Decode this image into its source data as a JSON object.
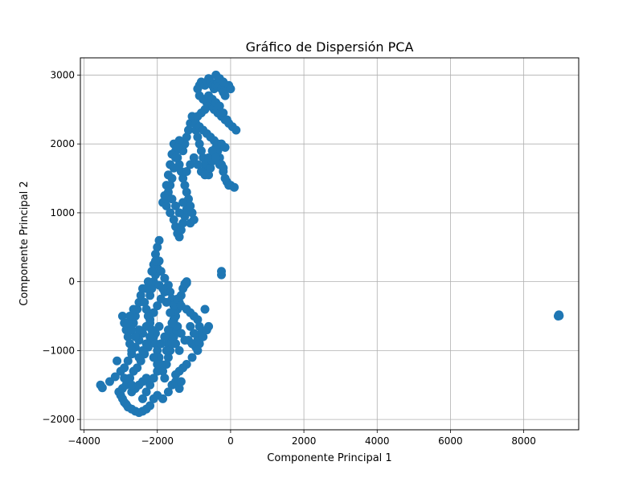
{
  "chart_data": {
    "type": "scatter",
    "title": "Gráfico de Dispersión PCA",
    "xlabel": "Componente Principal 1",
    "ylabel": "Componente Principal 2",
    "xlim": [
      -4100,
      9500
    ],
    "ylim": [
      -2150,
      3250
    ],
    "xticks": [
      -4000,
      -2000,
      0,
      2000,
      4000,
      6000,
      8000
    ],
    "yticks": [
      -2000,
      -1000,
      0,
      1000,
      2000,
      3000
    ],
    "xtick_labels": [
      "−4000",
      "−2000",
      "0",
      "2000",
      "4000",
      "6000",
      "8000"
    ],
    "ytick_labels": [
      "−2000",
      "−1000",
      "0",
      "1000",
      "2000",
      "3000"
    ],
    "grid": true,
    "color": "#1f77b4",
    "series": [
      {
        "points": [
          [
            -3550,
            -1500
          ],
          [
            -3500,
            -1540
          ],
          [
            -3300,
            -1450
          ],
          [
            -3150,
            -1380
          ],
          [
            -3100,
            -1150
          ],
          [
            -3050,
            -1600
          ],
          [
            -3000,
            -1650
          ],
          [
            -2950,
            -1700
          ],
          [
            -2900,
            -1750
          ],
          [
            -2850,
            -1780
          ],
          [
            -2800,
            -1820
          ],
          [
            -2700,
            -1850
          ],
          [
            -2600,
            -1880
          ],
          [
            -2500,
            -1900
          ],
          [
            -2400,
            -1880
          ],
          [
            -2300,
            -1850
          ],
          [
            -2200,
            -1800
          ],
          [
            -2100,
            -1700
          ],
          [
            -2000,
            -1650
          ],
          [
            -1850,
            -1700
          ],
          [
            -1700,
            -1600
          ],
          [
            -1600,
            -1500
          ],
          [
            -1500,
            -1450
          ],
          [
            -1400,
            -1550
          ],
          [
            -1350,
            -1450
          ],
          [
            -2950,
            -1550
          ],
          [
            -2850,
            -1500
          ],
          [
            -2750,
            -1400
          ],
          [
            -2650,
            -1300
          ],
          [
            -2550,
            -1250
          ],
          [
            -2450,
            -1150
          ],
          [
            -2350,
            -1050
          ],
          [
            -2250,
            -950
          ],
          [
            -2150,
            -850
          ],
          [
            -2050,
            -750
          ],
          [
            -1950,
            -650
          ],
          [
            -2900,
            -1250
          ],
          [
            -2800,
            -1150
          ],
          [
            -2700,
            -1050
          ],
          [
            -2600,
            -950
          ],
          [
            -2500,
            -850
          ],
          [
            -2400,
            -750
          ],
          [
            -2300,
            -650
          ],
          [
            -2200,
            -550
          ],
          [
            -2100,
            -450
          ],
          [
            -2000,
            -350
          ],
          [
            -1900,
            -250
          ],
          [
            -1800,
            -150
          ],
          [
            -2950,
            -500
          ],
          [
            -2900,
            -600
          ],
          [
            -2850,
            -700
          ],
          [
            -2800,
            -800
          ],
          [
            -2750,
            -900
          ],
          [
            -2700,
            -1000
          ],
          [
            -2650,
            -600
          ],
          [
            -2600,
            -500
          ],
          [
            -2550,
            -400
          ],
          [
            -2500,
            -300
          ],
          [
            -2450,
            -200
          ],
          [
            -2400,
            -100
          ],
          [
            -2350,
            -300
          ],
          [
            -2300,
            -400
          ],
          [
            -2250,
            -500
          ],
          [
            -2200,
            -600
          ],
          [
            -2150,
            -700
          ],
          [
            -2100,
            -800
          ],
          [
            -2050,
            -900
          ],
          [
            -2000,
            -1000
          ],
          [
            -1950,
            -1100
          ],
          [
            -1900,
            -1200
          ],
          [
            -1850,
            -1300
          ],
          [
            -1800,
            -1400
          ],
          [
            -1750,
            -1000
          ],
          [
            -1700,
            -900
          ],
          [
            -1650,
            -800
          ],
          [
            -1600,
            -700
          ],
          [
            -1550,
            -600
          ],
          [
            -1500,
            -500
          ],
          [
            -1450,
            -400
          ],
          [
            -1400,
            -300
          ],
          [
            -1350,
            -200
          ],
          [
            -1300,
            -100
          ],
          [
            -1250,
            -50
          ],
          [
            -1200,
            -20
          ],
          [
            -1750,
            -1200
          ],
          [
            -1700,
            -1100
          ],
          [
            -1650,
            -1000
          ],
          [
            -1600,
            -900
          ],
          [
            -1550,
            -800
          ],
          [
            -1500,
            -700
          ],
          [
            -2200,
            -200
          ],
          [
            -2150,
            -100
          ],
          [
            -2100,
            0
          ],
          [
            -2050,
            100
          ],
          [
            -2000,
            200
          ],
          [
            -1950,
            300
          ],
          [
            -2000,
            500
          ],
          [
            -1950,
            600
          ],
          [
            -2050,
            400
          ],
          [
            -2100,
            250
          ],
          [
            -1900,
            150
          ],
          [
            -1800,
            50
          ],
          [
            -1700,
            -50
          ],
          [
            -1650,
            -150
          ],
          [
            -1600,
            -250
          ],
          [
            -1550,
            -350
          ],
          [
            -1450,
            -250
          ],
          [
            -1350,
            -350
          ],
          [
            -1200,
            -400
          ],
          [
            -1100,
            -450
          ],
          [
            -1000,
            -500
          ],
          [
            -900,
            -550
          ],
          [
            -850,
            -650
          ],
          [
            -800,
            -750
          ],
          [
            -1100,
            -650
          ],
          [
            -1000,
            -750
          ],
          [
            -900,
            -850
          ],
          [
            -950,
            -950
          ],
          [
            -1050,
            -900
          ],
          [
            -1150,
            -850
          ],
          [
            -700,
            -400
          ],
          [
            -600,
            -650
          ],
          [
            -650,
            -700
          ],
          [
            -750,
            -800
          ],
          [
            -850,
            -900
          ],
          [
            -900,
            -1000
          ],
          [
            -1050,
            -1100
          ],
          [
            -1200,
            -1200
          ],
          [
            -1300,
            -1250
          ],
          [
            -1400,
            -1300
          ],
          [
            -1500,
            -1350
          ],
          [
            -250,
            100
          ],
          [
            -250,
            150
          ],
          [
            -1200,
            0
          ],
          [
            -1250,
            -30
          ],
          [
            -2400,
            -1700
          ],
          [
            -2300,
            -1600
          ],
          [
            -2200,
            -1500
          ],
          [
            -2100,
            -1400
          ],
          [
            -2000,
            -1300
          ],
          [
            -2700,
            -1600
          ],
          [
            -2600,
            -1550
          ],
          [
            -2500,
            -1500
          ],
          [
            -2400,
            -1450
          ],
          [
            -2300,
            -1400
          ],
          [
            -3000,
            -1300
          ],
          [
            -2900,
            -1400
          ],
          [
            -2800,
            -1450
          ],
          [
            -2700,
            -1500
          ],
          [
            -2500,
            -1100
          ],
          [
            -2400,
            -1000
          ],
          [
            -2300,
            -900
          ],
          [
            -2200,
            -800
          ],
          [
            -2100,
            -1100
          ],
          [
            -2000,
            -1200
          ],
          [
            -2500,
            -700
          ],
          [
            -2600,
            -800
          ],
          [
            -2700,
            -700
          ],
          [
            -2800,
            -600
          ],
          [
            -2750,
            -500
          ],
          [
            -2650,
            -400
          ],
          [
            -2300,
            -100
          ],
          [
            -2250,
            0
          ],
          [
            -2150,
            150
          ],
          [
            -2050,
            300
          ],
          [
            -1950,
            -50
          ],
          [
            -1850,
            -100
          ],
          [
            -1750,
            -300
          ],
          [
            -1650,
            -450
          ],
          [
            -1550,
            -550
          ],
          [
            -1450,
            -650
          ],
          [
            -1350,
            -750
          ],
          [
            -1250,
            -850
          ],
          [
            -1900,
            -900
          ],
          [
            -1800,
            -800
          ],
          [
            -1700,
            -700
          ],
          [
            -1600,
            -600
          ],
          [
            -1500,
            -900
          ],
          [
            -1400,
            -1000
          ],
          [
            -1150,
            1200
          ],
          [
            -1200,
            1300
          ],
          [
            -1250,
            1400
          ],
          [
            -1300,
            1500
          ],
          [
            -1350,
            1600
          ],
          [
            -1400,
            1700
          ],
          [
            -1450,
            1800
          ],
          [
            -1500,
            1900
          ],
          [
            -1550,
            2000
          ],
          [
            -1600,
            1850
          ],
          [
            -1650,
            1700
          ],
          [
            -1700,
            1550
          ],
          [
            -1750,
            1400
          ],
          [
            -1800,
            1250
          ],
          [
            -1850,
            1150
          ],
          [
            -1750,
            1100
          ],
          [
            -1650,
            1000
          ],
          [
            -1550,
            900
          ],
          [
            -1500,
            800
          ],
          [
            -1450,
            700
          ],
          [
            -1400,
            650
          ],
          [
            -1350,
            750
          ],
          [
            -1300,
            850
          ],
          [
            -1250,
            950
          ],
          [
            -1200,
            1050
          ],
          [
            -1100,
            850
          ],
          [
            -1000,
            900
          ],
          [
            -1050,
            1000
          ],
          [
            -1100,
            1100
          ],
          [
            -1300,
            1900
          ],
          [
            -1250,
            2000
          ],
          [
            -1200,
            2100
          ],
          [
            -1150,
            2200
          ],
          [
            -1100,
            2300
          ],
          [
            -1050,
            2400
          ],
          [
            -1000,
            2300
          ],
          [
            -950,
            2200
          ],
          [
            -900,
            2100
          ],
          [
            -850,
            2000
          ],
          [
            -800,
            1900
          ],
          [
            -750,
            1800
          ],
          [
            -700,
            1700
          ],
          [
            -650,
            1600
          ],
          [
            -600,
            1550
          ],
          [
            -550,
            1650
          ],
          [
            -500,
            1750
          ],
          [
            -450,
            1850
          ],
          [
            -400,
            1950
          ],
          [
            -350,
            1900
          ],
          [
            -300,
            1800
          ],
          [
            -250,
            1700
          ],
          [
            -200,
            1600
          ],
          [
            -150,
            1500
          ],
          [
            -100,
            1450
          ],
          [
            -50,
            1400
          ],
          [
            0,
            1400
          ],
          [
            100,
            1370
          ],
          [
            150,
            2200
          ],
          [
            50,
            2250
          ],
          [
            -50,
            2300
          ],
          [
            -150,
            2350
          ],
          [
            -250,
            2400
          ],
          [
            -350,
            2450
          ],
          [
            -450,
            2500
          ],
          [
            -550,
            2550
          ],
          [
            -650,
            2600
          ],
          [
            -750,
            2650
          ],
          [
            -850,
            2700
          ],
          [
            -900,
            2800
          ],
          [
            -850,
            2850
          ],
          [
            -800,
            2900
          ],
          [
            -750,
            2880
          ],
          [
            -700,
            2850
          ],
          [
            -650,
            2900
          ],
          [
            -600,
            2950
          ],
          [
            -550,
            2900
          ],
          [
            -500,
            2850
          ],
          [
            -450,
            2800
          ],
          [
            -400,
            2850
          ],
          [
            -350,
            2900
          ],
          [
            -300,
            2850
          ],
          [
            -250,
            2800
          ],
          [
            -200,
            2750
          ],
          [
            -150,
            2700
          ],
          [
            -100,
            2800
          ],
          [
            -50,
            2850
          ],
          [
            0,
            2800
          ],
          [
            -400,
            3000
          ],
          [
            -300,
            2950
          ],
          [
            -200,
            2900
          ],
          [
            -600,
            2700
          ],
          [
            -500,
            2650
          ],
          [
            -400,
            2600
          ],
          [
            -300,
            2550
          ],
          [
            -200,
            2450
          ],
          [
            -100,
            2350
          ],
          [
            -700,
            2500
          ],
          [
            -800,
            2450
          ],
          [
            -900,
            2400
          ],
          [
            -950,
            2300
          ],
          [
            -850,
            2250
          ],
          [
            -750,
            2200
          ],
          [
            -650,
            2150
          ],
          [
            -550,
            2100
          ],
          [
            -450,
            2050
          ],
          [
            -350,
            2000
          ],
          [
            -250,
            2000
          ],
          [
            -150,
            1950
          ],
          [
            -1400,
            2050
          ],
          [
            -1450,
            1950
          ],
          [
            -1500,
            1800
          ],
          [
            -1550,
            1650
          ],
          [
            -1600,
            1500
          ],
          [
            -1650,
            1400
          ],
          [
            -1700,
            1300
          ],
          [
            -1750,
            1200
          ],
          [
            -1600,
            1200
          ],
          [
            -1500,
            1100
          ],
          [
            -1400,
            1000
          ],
          [
            -1300,
            1150
          ],
          [
            -1200,
            1600
          ],
          [
            -1100,
            1700
          ],
          [
            -1000,
            1800
          ],
          [
            -900,
            1700
          ],
          [
            -800,
            1600
          ],
          [
            -700,
            1550
          ],
          [
            -600,
            1800
          ],
          [
            -500,
            1900
          ],
          [
            -400,
            1800
          ],
          [
            -300,
            1700
          ],
          [
            -200,
            1650
          ],
          [
            8950,
            -490
          ],
          [
            8960,
            -480
          ],
          [
            8940,
            -500
          ],
          [
            8970,
            -495
          ]
        ]
      }
    ]
  }
}
